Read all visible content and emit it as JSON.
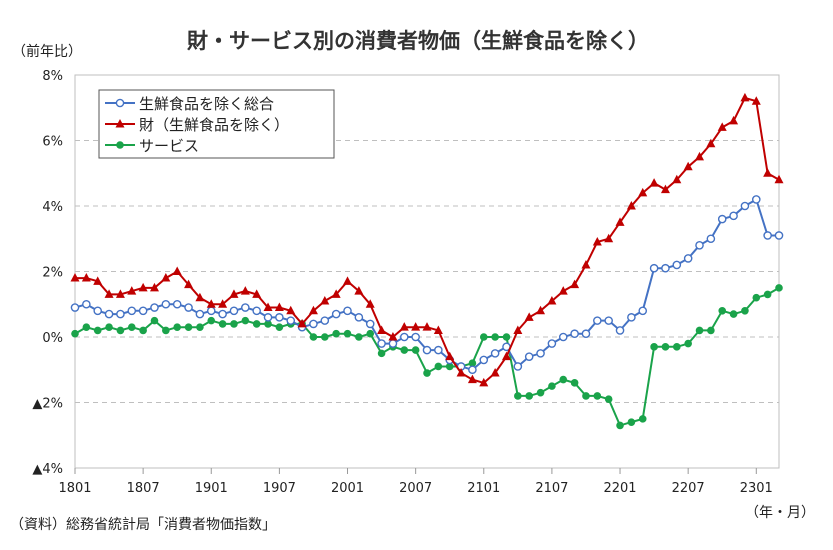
{
  "chart_data": {
    "type": "line",
    "title": "財・サービス別の消費者物価（生鮮食品を除く）",
    "ylabel": "（前年比）",
    "xlabel": "（年・月）",
    "source": "（資料）総務省統計局「消費者物価指数」",
    "ylim": [
      -4,
      8
    ],
    "yticks": [
      8,
      6,
      4,
      2,
      0,
      -2,
      -4
    ],
    "ytick_labels": [
      "8%",
      "6%",
      "4%",
      "2%",
      "0%",
      "▲2%",
      "▲4%"
    ],
    "xtick_labels": [
      "1801",
      "1807",
      "1901",
      "1907",
      "2001",
      "2007",
      "2101",
      "2107",
      "2201",
      "2207",
      "2301"
    ],
    "x_period": "2018-01 to 2023-03 (monthly)",
    "grid": "horizontal dashed",
    "legend_position": "top-left",
    "series": [
      {
        "name": "生鮮食品を除く総合",
        "color": "#4472c4",
        "marker": "open-circle",
        "values": [
          0.9,
          1.0,
          0.8,
          0.7,
          0.7,
          0.8,
          0.8,
          0.9,
          1.0,
          1.0,
          0.9,
          0.7,
          0.8,
          0.7,
          0.8,
          0.9,
          0.8,
          0.6,
          0.6,
          0.5,
          0.3,
          0.4,
          0.5,
          0.7,
          0.8,
          0.6,
          0.4,
          -0.2,
          -0.2,
          0.0,
          0.0,
          -0.4,
          -0.4,
          -0.7,
          -0.9,
          -1.0,
          -0.7,
          -0.5,
          -0.3,
          -0.9,
          -0.6,
          -0.5,
          -0.2,
          0.0,
          0.1,
          0.1,
          0.5,
          0.5,
          0.2,
          0.6,
          0.8,
          2.1,
          2.1,
          2.2,
          2.4,
          2.8,
          3.0,
          3.6,
          3.7,
          4.0,
          4.2,
          3.1,
          3.1
        ]
      },
      {
        "name": "財（生鮮食品を除く）",
        "color": "#c00000",
        "marker": "triangle",
        "values": [
          1.8,
          1.8,
          1.7,
          1.3,
          1.3,
          1.4,
          1.5,
          1.5,
          1.8,
          2.0,
          1.6,
          1.2,
          1.0,
          1.0,
          1.3,
          1.4,
          1.3,
          0.9,
          0.9,
          0.8,
          0.4,
          0.8,
          1.1,
          1.3,
          1.7,
          1.4,
          1.0,
          0.2,
          0.0,
          0.3,
          0.3,
          0.3,
          0.2,
          -0.6,
          -1.1,
          -1.3,
          -1.4,
          -1.1,
          -0.6,
          0.2,
          0.6,
          0.8,
          1.1,
          1.4,
          1.6,
          2.2,
          2.9,
          3.0,
          3.5,
          4.0,
          4.4,
          4.7,
          4.5,
          4.8,
          5.2,
          5.5,
          5.9,
          6.4,
          6.6,
          7.3,
          7.2,
          5.0,
          4.8
        ]
      },
      {
        "name": "サービス",
        "color": "#1aa34a",
        "marker": "filled-circle",
        "values": [
          0.1,
          0.3,
          0.2,
          0.3,
          0.2,
          0.3,
          0.2,
          0.5,
          0.2,
          0.3,
          0.3,
          0.3,
          0.5,
          0.4,
          0.4,
          0.5,
          0.4,
          0.4,
          0.3,
          0.4,
          0.4,
          0.0,
          0.0,
          0.1,
          0.1,
          0.0,
          0.1,
          -0.5,
          -0.3,
          -0.4,
          -0.4,
          -1.1,
          -0.9,
          -0.9,
          -0.9,
          -0.8,
          0.0,
          0.0,
          0.0,
          -1.8,
          -1.8,
          -1.7,
          -1.5,
          -1.3,
          -1.4,
          -1.8,
          -1.8,
          -1.9,
          -2.7,
          -2.6,
          -2.5,
          -0.3,
          -0.3,
          -0.3,
          -0.2,
          0.2,
          0.2,
          0.8,
          0.7,
          0.8,
          1.2,
          1.3,
          1.5
        ]
      }
    ]
  }
}
